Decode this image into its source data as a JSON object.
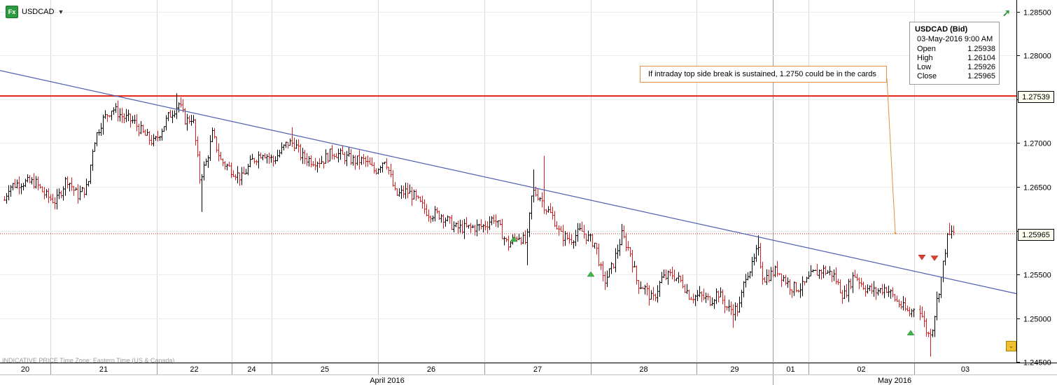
{
  "symbol": {
    "name": "USDCAD",
    "fx_badge": "Fx",
    "caret": "▼"
  },
  "ohlc_box": {
    "title": "USDCAD (Bid)",
    "datetime": "03-May-2016 9:00 AM",
    "rows": [
      {
        "label": "Open",
        "value": "1.25938"
      },
      {
        "label": "High",
        "value": "1.26104"
      },
      {
        "label": "Low",
        "value": "1.25926"
      },
      {
        "label": "Close",
        "value": "1.25965"
      }
    ]
  },
  "annotation": "If intraday top side break is sustained, 1.2750 could be in the cards",
  "footer_note": "INDICATIVE PRICE   Time Zone: Eastern Time (US & Canada)",
  "price_tags": {
    "resistance": "1.27539",
    "current": "1.25965"
  },
  "colors": {
    "up_bar": "#000000",
    "down_bar": "#d42020",
    "resistance": "#e02010",
    "trendline": "#5060b0",
    "target_arrow": "#e0914a",
    "grid": "#d8d8d8"
  },
  "chart_data": {
    "type": "ohlc",
    "title": "USDCAD",
    "ylim": [
      1.2447,
      1.2862
    ],
    "y_ticks": [
      "1.28500",
      "1.28000",
      "1.27500",
      "1.27000",
      "1.26500",
      "1.26000",
      "1.25500",
      "1.25000",
      "1.24500"
    ],
    "y_tick_values": [
      1.285,
      1.28,
      1.275,
      1.27,
      1.265,
      1.26,
      1.255,
      1.25,
      1.245
    ],
    "x_day_labels": [
      "20",
      "21",
      "22",
      "24",
      "25",
      "26",
      "27",
      "28",
      "29",
      "01",
      "02",
      "03"
    ],
    "x_month_labels": [
      "April 2016",
      "May 2016"
    ],
    "horizontal_lines": [
      {
        "name": "resistance",
        "value": 1.27539
      },
      {
        "name": "last-close",
        "value": 1.25965
      }
    ],
    "trendline": {
      "start": {
        "day": "20",
        "price": 1.2783
      },
      "end": {
        "day": "03",
        "price": 1.2528
      }
    },
    "annotation_target_price": 1.2597,
    "path_points": [
      [
        0,
        1.262
      ],
      [
        12,
        1.265
      ],
      [
        28,
        1.2655
      ],
      [
        50,
        1.2655
      ],
      [
        65,
        1.264
      ],
      [
        80,
        1.2633
      ],
      [
        95,
        1.266
      ],
      [
        110,
        1.264
      ],
      [
        125,
        1.265
      ],
      [
        133,
        1.27
      ],
      [
        145,
        1.2725
      ],
      [
        160,
        1.274
      ],
      [
        175,
        1.273
      ],
      [
        190,
        1.2725
      ],
      [
        205,
        1.271
      ],
      [
        220,
        1.27
      ],
      [
        240,
        1.273
      ],
      [
        255,
        1.2745
      ],
      [
        265,
        1.2725
      ],
      [
        275,
        1.273
      ],
      [
        285,
        1.266
      ],
      [
        295,
        1.268
      ],
      [
        303,
        1.271
      ],
      [
        315,
        1.268
      ],
      [
        330,
        1.267
      ],
      [
        345,
        1.266
      ],
      [
        360,
        1.268
      ],
      [
        375,
        1.269
      ],
      [
        390,
        1.268
      ],
      [
        410,
        1.27
      ],
      [
        420,
        1.27
      ],
      [
        430,
        1.2685
      ],
      [
        445,
        1.268
      ],
      [
        460,
        1.268
      ],
      [
        475,
        1.269
      ],
      [
        490,
        1.2685
      ],
      [
        505,
        1.268
      ],
      [
        520,
        1.268
      ],
      [
        535,
        1.2668
      ],
      [
        550,
        1.2683
      ],
      [
        565,
        1.264
      ],
      [
        580,
        1.2645
      ],
      [
        590,
        1.264
      ],
      [
        600,
        1.263
      ],
      [
        612,
        1.262
      ],
      [
        630,
        1.2618
      ],
      [
        650,
        1.2603
      ],
      [
        670,
        1.2603
      ],
      [
        690,
        1.2605
      ],
      [
        705,
        1.2615
      ],
      [
        715,
        1.26
      ],
      [
        725,
        1.2583
      ],
      [
        740,
        1.2595
      ],
      [
        752,
        1.2585
      ],
      [
        760,
        1.2645
      ],
      [
        770,
        1.264
      ],
      [
        780,
        1.2625
      ],
      [
        790,
        1.2615
      ],
      [
        800,
        1.2595
      ],
      [
        815,
        1.259
      ],
      [
        830,
        1.26
      ],
      [
        842,
        1.259
      ],
      [
        850,
        1.2585
      ],
      [
        862,
        1.254
      ],
      [
        875,
        1.256
      ],
      [
        888,
        1.2595
      ],
      [
        900,
        1.2575
      ],
      [
        910,
        1.254
      ],
      [
        920,
        1.2535
      ],
      [
        932,
        1.252
      ],
      [
        945,
        1.2545
      ],
      [
        960,
        1.255
      ],
      [
        975,
        1.254
      ],
      [
        985,
        1.2525
      ],
      [
        1000,
        1.2525
      ],
      [
        1015,
        1.252
      ],
      [
        1025,
        1.253
      ],
      [
        1040,
        1.251
      ],
      [
        1055,
        1.251
      ],
      [
        1065,
        1.255
      ],
      [
        1075,
        1.256
      ],
      [
        1082,
        1.258
      ],
      [
        1090,
        1.2545
      ],
      [
        1100,
        1.255
      ],
      [
        1110,
        1.2555
      ],
      [
        1120,
        1.2545
      ],
      [
        1130,
        1.2535
      ],
      [
        1145,
        1.2535
      ],
      [
        1160,
        1.255
      ],
      [
        1175,
        1.2555
      ],
      [
        1190,
        1.255
      ],
      [
        1205,
        1.2525
      ],
      [
        1220,
        1.255
      ],
      [
        1235,
        1.2535
      ],
      [
        1250,
        1.253
      ],
      [
        1265,
        1.2535
      ],
      [
        1280,
        1.252
      ],
      [
        1292,
        1.251
      ],
      [
        1300,
        1.2505
      ],
      [
        1310,
        1.252
      ],
      [
        1318,
        1.25
      ],
      [
        1325,
        1.248
      ],
      [
        1332,
        1.249
      ],
      [
        1338,
        1.252
      ],
      [
        1345,
        1.255
      ],
      [
        1352,
        1.259
      ],
      [
        1360,
        1.2598
      ]
    ],
    "markers": [
      {
        "type": "up",
        "day": "27",
        "price": 1.259
      },
      {
        "type": "up",
        "day": "28",
        "price": 1.255
      },
      {
        "type": "up",
        "day": "02",
        "price": 1.2483
      },
      {
        "type": "down",
        "day": "02",
        "price": 1.2569
      },
      {
        "type": "down",
        "day": "02",
        "price": 1.2568
      }
    ]
  }
}
